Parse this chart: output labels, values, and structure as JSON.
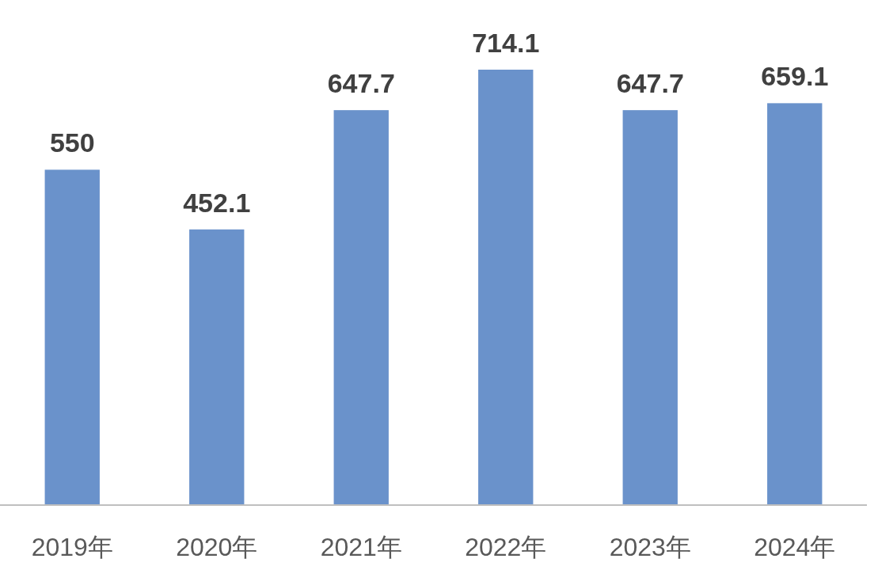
{
  "chart_data": {
    "type": "bar",
    "categories": [
      "2019年",
      "2020年",
      "2021年",
      "2022年",
      "2023年",
      "2024年"
    ],
    "values": [
      550,
      452.1,
      647.7,
      714.1,
      647.7,
      659.1
    ],
    "color": "#6a92cb",
    "data_labels": true,
    "tick_labels": "x"
  }
}
